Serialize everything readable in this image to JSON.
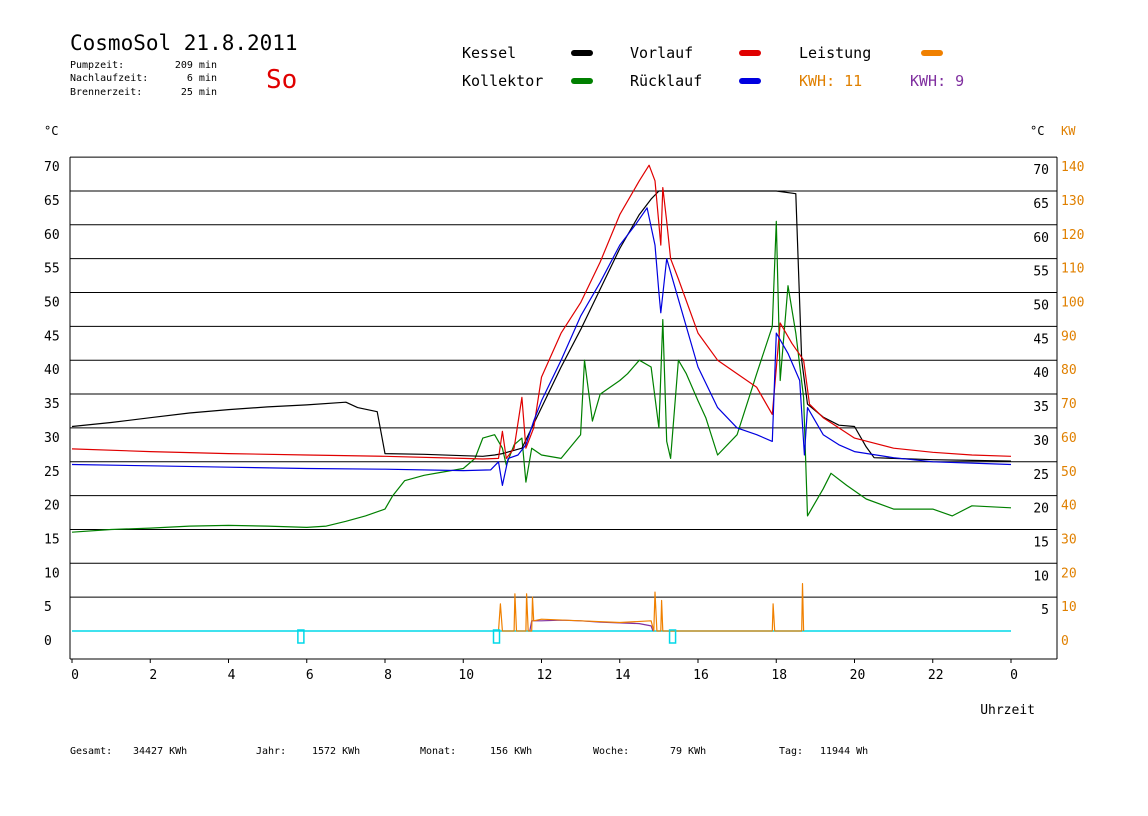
{
  "header": {
    "title": "CosmoSol 21.8.2011",
    "day": "So",
    "stats": [
      {
        "label": "Pumpzeit:",
        "value": "209 min"
      },
      {
        "label": "Nachlaufzeit:",
        "value": "6 min"
      },
      {
        "label": "Brennerzeit:",
        "value": "25 min"
      }
    ]
  },
  "legend": [
    {
      "name": "Kessel",
      "color": "#000000"
    },
    {
      "name": "Vorlauf",
      "color": "#e00000"
    },
    {
      "name": "Leistung",
      "color": "#f08000"
    },
    {
      "name": "Kollektor",
      "color": "#008000"
    },
    {
      "name": "Rücklauf",
      "color": "#0000e0"
    }
  ],
  "kwh": [
    {
      "text": "KWH: 11",
      "color": "#e08000"
    },
    {
      "text": "KWH: 9",
      "color": "#8030a0"
    }
  ],
  "axes": {
    "left_unit": "°C",
    "right_unit_c": "°C",
    "right_unit_kw": "KW",
    "xlabel": "Uhrzeit",
    "x_ticks": [
      "0",
      "2",
      "4",
      "6",
      "8",
      "10",
      "12",
      "14",
      "16",
      "18",
      "20",
      "22",
      "0"
    ],
    "y_ticks": [
      0,
      5,
      10,
      15,
      20,
      25,
      30,
      35,
      40,
      45,
      50,
      55,
      60,
      65,
      70
    ],
    "kw_ticks": [
      0,
      10,
      20,
      30,
      40,
      50,
      60,
      70,
      80,
      90,
      100,
      110,
      120,
      130,
      140
    ],
    "ylim": [
      0,
      70
    ],
    "kwlim": [
      0,
      140
    ]
  },
  "footer": [
    {
      "label": "Gesamt:",
      "value": "34427 KWh"
    },
    {
      "label": "Jahr:",
      "value": "1572 KWh"
    },
    {
      "label": "Monat:",
      "value": "156 KWh"
    },
    {
      "label": "Woche:",
      "value": "79 KWh"
    },
    {
      "label": "Tag:",
      "value": "11944 Wh"
    }
  ],
  "chart_data": {
    "type": "line",
    "xlabel": "Uhrzeit",
    "ylabel": "°C",
    "y2label": "KW",
    "xlim": [
      0,
      24
    ],
    "ylim": [
      0,
      70
    ],
    "y2lim": [
      0,
      140
    ],
    "grid": true,
    "colors": {
      "Kessel": "#000000",
      "Vorlauf": "#e00000",
      "Rücklauf": "#0000e0",
      "Kollektor": "#008000",
      "Leistung": "#f08000",
      "purple": "#8030a0",
      "cyan": "#00d8e8"
    },
    "series": [
      {
        "name": "Kessel",
        "axis": "left",
        "points": [
          [
            0,
            30.2
          ],
          [
            1,
            30.8
          ],
          [
            2,
            31.5
          ],
          [
            3,
            32.2
          ],
          [
            4,
            32.7
          ],
          [
            5,
            33.1
          ],
          [
            6,
            33.4
          ],
          [
            7,
            33.8
          ],
          [
            7.3,
            33.0
          ],
          [
            7.8,
            32.4
          ],
          [
            8,
            26.2
          ],
          [
            9,
            26.1
          ],
          [
            10,
            25.9
          ],
          [
            10.5,
            25.8
          ],
          [
            10.8,
            26.0
          ],
          [
            11.0,
            26.2
          ],
          [
            11.5,
            27.0
          ],
          [
            12,
            33.0
          ],
          [
            12.5,
            39.0
          ],
          [
            13,
            44.5
          ],
          [
            13.5,
            50.5
          ],
          [
            14,
            56.5
          ],
          [
            14.5,
            61.5
          ],
          [
            14.8,
            63.8
          ],
          [
            15,
            65.0
          ],
          [
            16,
            65.0
          ],
          [
            17,
            65.0
          ],
          [
            18,
            65.0
          ],
          [
            18.5,
            64.6
          ],
          [
            18.65,
            40.0
          ],
          [
            18.8,
            33.5
          ],
          [
            19.2,
            31.6
          ],
          [
            19.6,
            30.4
          ],
          [
            20.0,
            30.2
          ],
          [
            20.3,
            27.2
          ],
          [
            20.5,
            25.6
          ],
          [
            21,
            25.5
          ],
          [
            22,
            25.3
          ],
          [
            23,
            25.2
          ],
          [
            24,
            25.1
          ]
        ]
      },
      {
        "name": "Vorlauf",
        "axis": "left",
        "points": [
          [
            0,
            26.9
          ],
          [
            2,
            26.5
          ],
          [
            4,
            26.2
          ],
          [
            6,
            26.0
          ],
          [
            8,
            25.8
          ],
          [
            10,
            25.5
          ],
          [
            10.5,
            25.4
          ],
          [
            10.9,
            25.5
          ],
          [
            11.0,
            29.5
          ],
          [
            11.1,
            25.5
          ],
          [
            11.3,
            27.0
          ],
          [
            11.5,
            34.5
          ],
          [
            11.6,
            27.0
          ],
          [
            11.8,
            30.0
          ],
          [
            12,
            37.5
          ],
          [
            12.5,
            44.0
          ],
          [
            13,
            48.5
          ],
          [
            13.5,
            54.5
          ],
          [
            14,
            61.5
          ],
          [
            14.5,
            66.5
          ],
          [
            14.75,
            68.8
          ],
          [
            14.9,
            66.5
          ],
          [
            15.05,
            57.0
          ],
          [
            15.1,
            65.5
          ],
          [
            15.2,
            60.5
          ],
          [
            15.3,
            55.0
          ],
          [
            15.5,
            52.0
          ],
          [
            16,
            44.0
          ],
          [
            16.5,
            40.0
          ],
          [
            17,
            38.0
          ],
          [
            17.5,
            36.0
          ],
          [
            17.9,
            32.0
          ],
          [
            18.1,
            45.5
          ],
          [
            18.4,
            42.5
          ],
          [
            18.7,
            40.0
          ],
          [
            18.85,
            33.5
          ],
          [
            19.2,
            31.5
          ],
          [
            19.6,
            30.0
          ],
          [
            20,
            28.5
          ],
          [
            21,
            27.0
          ],
          [
            22,
            26.4
          ],
          [
            23,
            26.0
          ],
          [
            24,
            25.8
          ]
        ]
      },
      {
        "name": "Rücklauf",
        "axis": "left",
        "points": [
          [
            0,
            24.6
          ],
          [
            2,
            24.4
          ],
          [
            4,
            24.2
          ],
          [
            6,
            24.0
          ],
          [
            8,
            23.9
          ],
          [
            10,
            23.7
          ],
          [
            10.7,
            23.8
          ],
          [
            10.9,
            25.0
          ],
          [
            11.0,
            21.5
          ],
          [
            11.15,
            25.5
          ],
          [
            11.4,
            26.0
          ],
          [
            11.6,
            27.5
          ],
          [
            11.8,
            31.0
          ],
          [
            12,
            34.0
          ],
          [
            12.5,
            40.0
          ],
          [
            13,
            46.5
          ],
          [
            13.5,
            51.5
          ],
          [
            14,
            57.0
          ],
          [
            14.4,
            60.0
          ],
          [
            14.7,
            62.5
          ],
          [
            14.9,
            57.0
          ],
          [
            15.0,
            50.0
          ],
          [
            15.05,
            47.0
          ],
          [
            15.2,
            55.0
          ],
          [
            15.5,
            49.0
          ],
          [
            16,
            39.0
          ],
          [
            16.5,
            33.0
          ],
          [
            17,
            30.0
          ],
          [
            17.5,
            29.0
          ],
          [
            17.9,
            28.0
          ],
          [
            18.0,
            44.0
          ],
          [
            18.3,
            41.0
          ],
          [
            18.6,
            37.0
          ],
          [
            18.72,
            26.0
          ],
          [
            18.8,
            33.0
          ],
          [
            19.2,
            29.0
          ],
          [
            19.6,
            27.5
          ],
          [
            20,
            26.5
          ],
          [
            21,
            25.6
          ],
          [
            22,
            25.0
          ],
          [
            23,
            24.8
          ],
          [
            24,
            24.6
          ]
        ]
      },
      {
        "name": "Kollektor",
        "axis": "left",
        "points": [
          [
            0,
            14.6
          ],
          [
            1,
            15.0
          ],
          [
            2,
            15.2
          ],
          [
            3,
            15.5
          ],
          [
            4,
            15.6
          ],
          [
            5,
            15.5
          ],
          [
            6,
            15.3
          ],
          [
            6.5,
            15.5
          ],
          [
            7,
            16.2
          ],
          [
            7.5,
            17.0
          ],
          [
            8,
            18.0
          ],
          [
            8.2,
            20.0
          ],
          [
            8.5,
            22.2
          ],
          [
            9,
            23.0
          ],
          [
            9.5,
            23.5
          ],
          [
            10,
            24.0
          ],
          [
            10.3,
            25.5
          ],
          [
            10.5,
            28.5
          ],
          [
            10.8,
            29.0
          ],
          [
            11.0,
            27.0
          ],
          [
            11.1,
            24.5
          ],
          [
            11.3,
            27.5
          ],
          [
            11.5,
            28.5
          ],
          [
            11.6,
            22.0
          ],
          [
            11.75,
            27.0
          ],
          [
            12,
            26.0
          ],
          [
            12.5,
            25.5
          ],
          [
            13,
            29.0
          ],
          [
            13.1,
            40.0
          ],
          [
            13.3,
            31.0
          ],
          [
            13.5,
            35.0
          ],
          [
            14,
            37.0
          ],
          [
            14.2,
            38.0
          ],
          [
            14.5,
            40.0
          ],
          [
            14.8,
            39.0
          ],
          [
            15.0,
            30.0
          ],
          [
            15.1,
            46.0
          ],
          [
            15.2,
            28.0
          ],
          [
            15.3,
            25.5
          ],
          [
            15.5,
            40.0
          ],
          [
            15.7,
            38.0
          ],
          [
            16,
            34.0
          ],
          [
            16.2,
            31.5
          ],
          [
            16.5,
            26.0
          ],
          [
            17,
            29.0
          ],
          [
            17.5,
            38.0
          ],
          [
            17.9,
            45.0
          ],
          [
            18.0,
            60.5
          ],
          [
            18.1,
            37.0
          ],
          [
            18.3,
            51.0
          ],
          [
            18.5,
            44.0
          ],
          [
            18.7,
            34.5
          ],
          [
            18.8,
            17.0
          ],
          [
            19.2,
            21.0
          ],
          [
            19.4,
            23.3
          ],
          [
            19.8,
            21.5
          ],
          [
            20.3,
            19.5
          ],
          [
            21,
            18.0
          ],
          [
            22,
            18.0
          ],
          [
            22.5,
            17.0
          ],
          [
            23,
            18.5
          ],
          [
            24,
            18.2
          ]
        ]
      },
      {
        "name": "Leistung",
        "axis": "right",
        "points": [
          [
            10.9,
            0
          ],
          [
            10.95,
            8
          ],
          [
            11.0,
            0
          ],
          [
            11.3,
            0
          ],
          [
            11.32,
            11
          ],
          [
            11.36,
            0
          ],
          [
            11.6,
            0
          ],
          [
            11.62,
            11
          ],
          [
            11.66,
            0
          ],
          [
            11.75,
            0
          ],
          [
            11.77,
            10
          ],
          [
            11.8,
            3
          ],
          [
            12,
            3.5
          ],
          [
            13,
            3.0
          ],
          [
            14,
            2.5
          ],
          [
            14.8,
            3.0
          ],
          [
            14.87,
            0
          ],
          [
            14.9,
            11.5
          ],
          [
            14.95,
            0
          ],
          [
            15.05,
            0
          ],
          [
            15.07,
            9
          ],
          [
            15.1,
            0
          ],
          [
            17.9,
            0
          ],
          [
            17.92,
            8
          ],
          [
            17.96,
            0
          ],
          [
            18.65,
            0
          ],
          [
            18.67,
            14
          ],
          [
            18.7,
            0
          ]
        ]
      },
      {
        "name": "KWH: 9",
        "axis": "right",
        "points": [
          [
            11.7,
            0
          ],
          [
            11.75,
            3.0
          ],
          [
            12,
            3.0
          ],
          [
            12.5,
            3.2
          ],
          [
            13,
            3.0
          ],
          [
            13.5,
            2.6
          ],
          [
            14,
            2.4
          ],
          [
            14.5,
            2.2
          ],
          [
            14.8,
            1.5
          ],
          [
            14.85,
            0
          ]
        ]
      },
      {
        "name": "cyan",
        "axis": "left",
        "points": [
          [
            0,
            0
          ],
          [
            24,
            0
          ]
        ]
      }
    ],
    "markers": [
      {
        "x": 5.85,
        "color": "#00d8e8"
      },
      {
        "x": 10.85,
        "color": "#00d8e8"
      },
      {
        "x": 15.35,
        "color": "#00d8e8"
      }
    ]
  }
}
